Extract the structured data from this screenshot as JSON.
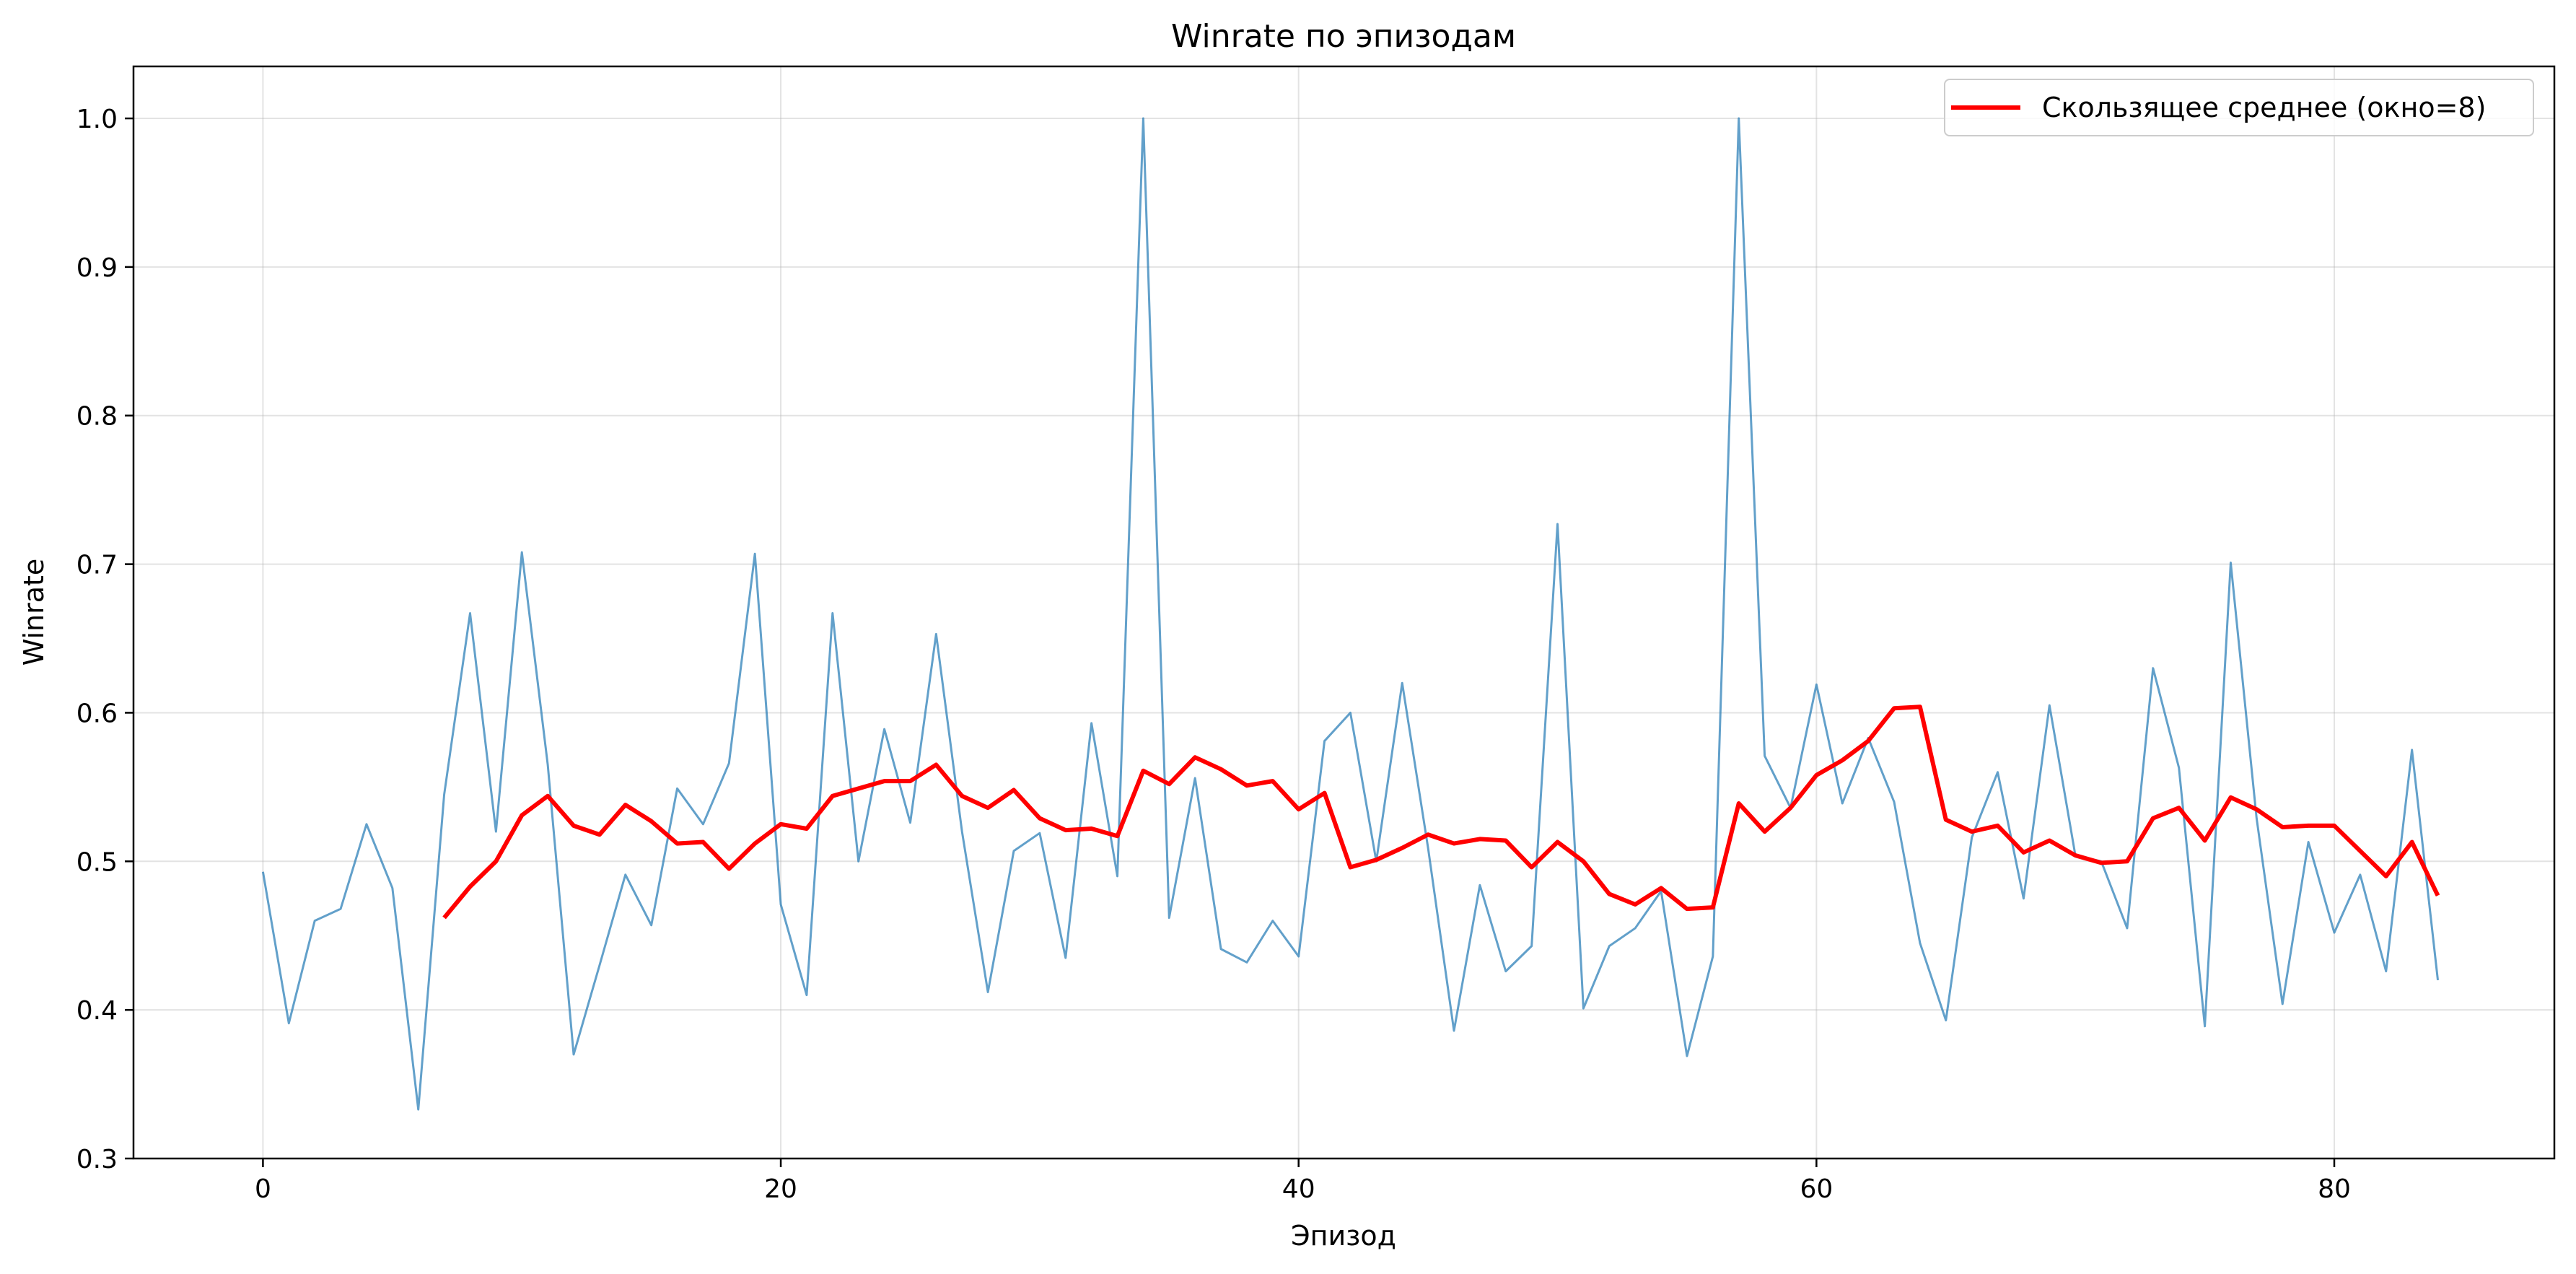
{
  "chart_data": {
    "type": "line",
    "title": "Winrate по эпизодам",
    "xlabel": "Эпизод",
    "ylabel": "Winrate",
    "xlim": [
      -5,
      88.5
    ],
    "ylim": [
      0.3,
      1.035
    ],
    "xticks": [
      0,
      20,
      40,
      60,
      80
    ],
    "xtick_labels": [
      "0",
      "20",
      "40",
      "60",
      "80"
    ],
    "yticks": [
      0.3,
      0.4,
      0.5,
      0.6,
      0.7,
      0.8,
      0.9,
      1.0
    ],
    "ytick_labels": [
      "0.3",
      "0.4",
      "0.5",
      "0.6",
      "0.7",
      "0.8",
      "0.9",
      "1.0"
    ],
    "grid": true,
    "legend_position": "top-right",
    "series": [
      {
        "key": "raw",
        "color": "#1f77b4",
        "x_start": 0,
        "values": [
          0.493,
          0.391,
          0.46,
          0.468,
          0.525,
          0.482,
          0.333,
          0.545,
          0.667,
          0.52,
          0.708,
          0.565,
          0.37,
          0.43,
          0.491,
          0.457,
          0.549,
          0.525,
          0.566,
          0.707,
          0.471,
          0.41,
          0.667,
          0.5,
          0.589,
          0.526,
          0.653,
          0.52,
          0.412,
          0.507,
          0.519,
          0.435,
          0.593,
          0.49,
          1.0,
          0.462,
          0.556,
          0.441,
          0.432,
          0.46,
          0.436,
          0.581,
          0.6,
          0.5,
          0.62,
          0.509,
          0.386,
          0.484,
          0.426,
          0.443,
          0.727,
          0.401,
          0.443,
          0.455,
          0.48,
          0.369,
          0.436,
          1.0,
          0.571,
          0.536,
          0.619,
          0.539,
          0.583,
          0.54,
          0.445,
          0.393,
          0.516,
          0.56,
          0.475,
          0.605,
          0.504,
          0.5,
          0.455,
          0.63,
          0.563,
          0.389,
          0.701,
          0.529,
          0.404,
          0.513,
          0.452,
          0.491,
          0.426,
          0.575,
          0.42
        ]
      },
      {
        "key": "ma",
        "name": "Скользящее среднее (окно=8)",
        "color": "#ff0000",
        "x_start": 7,
        "values": [
          0.462,
          0.483,
          0.5,
          0.531,
          0.544,
          0.524,
          0.518,
          0.538,
          0.527,
          0.512,
          0.513,
          0.495,
          0.512,
          0.525,
          0.522,
          0.544,
          0.549,
          0.554,
          0.554,
          0.565,
          0.544,
          0.536,
          0.548,
          0.529,
          0.521,
          0.522,
          0.517,
          0.561,
          0.552,
          0.57,
          0.562,
          0.551,
          0.554,
          0.535,
          0.546,
          0.496,
          0.501,
          0.509,
          0.518,
          0.512,
          0.515,
          0.514,
          0.496,
          0.513,
          0.5,
          0.478,
          0.471,
          0.482,
          0.468,
          0.469,
          0.539,
          0.52,
          0.536,
          0.558,
          0.568,
          0.581,
          0.603,
          0.604,
          0.528,
          0.52,
          0.524,
          0.506,
          0.514,
          0.504,
          0.499,
          0.5,
          0.529,
          0.536,
          0.514,
          0.543,
          0.535,
          0.523,
          0.524,
          0.524,
          0.507,
          0.49,
          0.513,
          0.477
        ]
      }
    ]
  }
}
